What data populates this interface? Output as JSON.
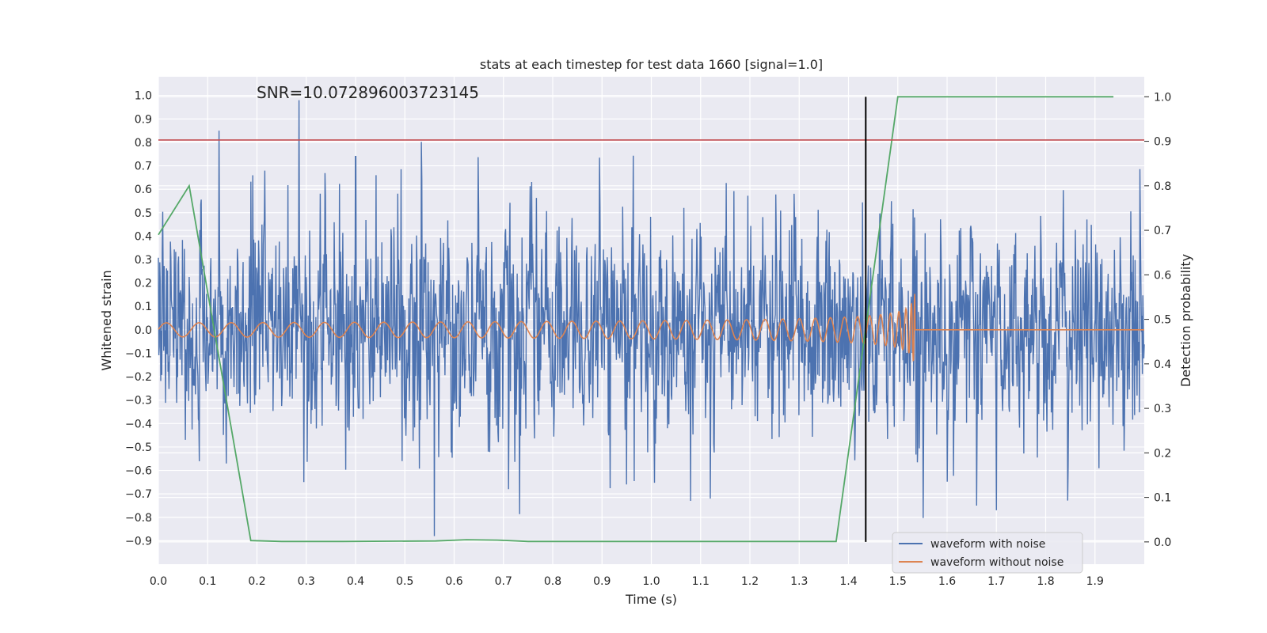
{
  "chart_data": {
    "type": "line",
    "title": "stats at each timestep for test data 1660 [signal=1.0]",
    "xlabel": "Time (s)",
    "ylabel_left": "Whitened strain",
    "ylabel_right": "Detection probability",
    "annotation": "SNR=10.072896003723145",
    "xlim": [
      0.0,
      2.0
    ],
    "ylim_left": [
      -1.0,
      1.08
    ],
    "ylim_right": [
      -0.05,
      1.045
    ],
    "x_ticks": [
      "0.0",
      "0.1",
      "0.2",
      "0.3",
      "0.4",
      "0.5",
      "0.6",
      "0.7",
      "0.8",
      "0.9",
      "1.0",
      "1.1",
      "1.2",
      "1.3",
      "1.4",
      "1.5",
      "1.6",
      "1.7",
      "1.8",
      "1.9"
    ],
    "y_left_ticks": [
      "1.0",
      "0.9",
      "0.8",
      "0.7",
      "0.6",
      "0.5",
      "0.4",
      "0.3",
      "0.2",
      "0.1",
      "0.0",
      "−0.1",
      "−0.2",
      "−0.3",
      "−0.4",
      "−0.5",
      "−0.6",
      "−0.7",
      "−0.8",
      "−0.9"
    ],
    "y_right_ticks": [
      "0.0",
      "0.1",
      "0.2",
      "0.3",
      "0.4",
      "0.5",
      "0.6",
      "0.7",
      "0.8",
      "0.9",
      "1.0"
    ],
    "grid": true,
    "legend_position": "lower-right",
    "series": [
      {
        "name": "waveform with noise",
        "axis": "left",
        "color": "#4c72b0",
        "kind": "dense noisy trace, amplitude ~0.25 std, peaks up to 1.0 and down to -0.89, x from 0.0 to 2.0"
      },
      {
        "name": "waveform without noise",
        "axis": "left",
        "color": "#dd8452",
        "kind": "chirp: amplitude 0.03 at 0.0s growing to ~0.45 at 1.53s, frequency rising, then flat 0.0 until 2.0s"
      },
      {
        "axis": "right",
        "color": "#55a868",
        "x": [
          0.0,
          0.0625,
          0.1875,
          0.25,
          0.375,
          0.5625,
          0.625,
          0.6875,
          0.75,
          0.875,
          1.0,
          1.25,
          1.375,
          1.5,
          1.9375
        ],
        "y": [
          0.69,
          0.8,
          0.003,
          0.001,
          0.001,
          0.002,
          0.005,
          0.004,
          0.001,
          0.001,
          0.001,
          0.001,
          0.001,
          1.0,
          1.0
        ]
      }
    ],
    "threshold_line": {
      "axis": "left",
      "y": 0.81,
      "color": "#c44e52"
    },
    "vertical_marker": {
      "x": 1.435,
      "color": "#000000"
    },
    "legend": [
      {
        "label": "waveform with noise",
        "color": "#4c72b0"
      },
      {
        "label": "waveform without noise",
        "color": "#dd8452"
      }
    ]
  }
}
